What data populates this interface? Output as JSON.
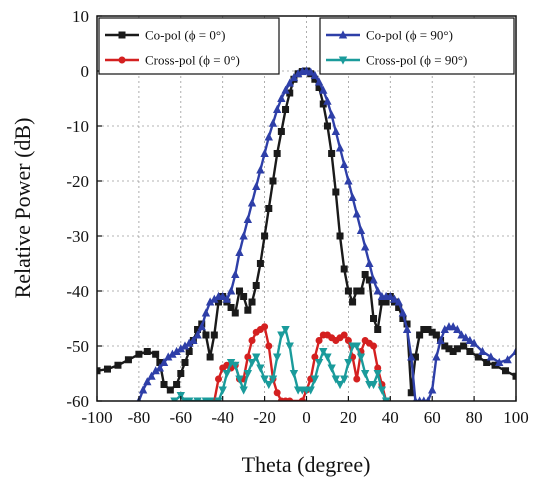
{
  "chart_data": {
    "type": "line",
    "xlabel": "Theta (degree)",
    "ylabel": "Relative Power (dB)",
    "xlim": [
      -100,
      100
    ],
    "ylim": [
      -60,
      10
    ],
    "xticks": [
      -100,
      -80,
      -60,
      -40,
      -20,
      0,
      20,
      40,
      60,
      80,
      100
    ],
    "yticks": [
      10,
      0,
      -10,
      -20,
      -30,
      -40,
      -50,
      -60
    ],
    "grid": true,
    "legend_placement": "top",
    "series": [
      {
        "name": "Co-pol (ϕ = 0°)",
        "color": "#1a1a1a",
        "marker": "square",
        "x": [
          -100,
          -95,
          -90,
          -85,
          -80,
          -76,
          -72,
          -70,
          -68,
          -65,
          -62,
          -60,
          -58,
          -56,
          -54,
          -52,
          -50,
          -48,
          -46,
          -44,
          -42,
          -40,
          -38,
          -36,
          -34,
          -32,
          -30,
          -28,
          -26,
          -24,
          -22,
          -20,
          -18,
          -16,
          -14,
          -12,
          -10,
          -8,
          -6,
          -4,
          -2,
          0,
          2,
          4,
          6,
          8,
          10,
          12,
          14,
          16,
          18,
          20,
          22,
          24,
          26,
          28,
          30,
          32,
          34,
          36,
          38,
          40,
          42,
          44,
          46,
          48,
          50,
          52,
          54,
          56,
          58,
          60,
          62,
          64,
          66,
          68,
          70,
          72,
          75,
          78,
          82,
          86,
          90,
          95,
          100
        ],
        "y": [
          -54.5,
          -54.2,
          -53.5,
          -52.5,
          -51.5,
          -51,
          -51.5,
          -53,
          -57,
          -58,
          -57,
          -55,
          -53,
          -51,
          -49,
          -47,
          -46,
          -48,
          -52,
          -48,
          -42,
          -41,
          -42,
          -43,
          -44,
          -40,
          -41,
          -43.5,
          -42,
          -39,
          -35,
          -30,
          -25,
          -20,
          -15,
          -11,
          -7,
          -4,
          -1.5,
          -0.5,
          -0.1,
          0,
          -0.5,
          -1.5,
          -3,
          -6,
          -10,
          -15,
          -22,
          -30,
          -36,
          -40,
          -42,
          -40,
          -40,
          -37,
          -38,
          -45,
          -47,
          -42,
          -42,
          -41,
          -42,
          -43,
          -45,
          -46,
          -58.5,
          -52,
          -48,
          -47,
          -47,
          -47.5,
          -48,
          -49,
          -50,
          -50.5,
          -51,
          -50.5,
          -50,
          -51,
          -52,
          -53,
          -53.5,
          -54.5,
          -55.5
        ]
      },
      {
        "name": "Cross-pol (ϕ = 0°)",
        "color": "#d42020",
        "marker": "circle",
        "x": [
          -44,
          -42,
          -40,
          -38,
          -36,
          -34,
          -32,
          -30,
          -28,
          -26,
          -24,
          -22,
          -20,
          -18,
          -16,
          -14,
          -12,
          -10,
          -8,
          -2,
          0,
          2,
          4,
          6,
          8,
          10,
          12,
          14,
          16,
          18,
          20,
          22,
          24,
          26,
          28,
          30,
          32,
          34,
          36,
          38
        ],
        "y": [
          -60,
          -56,
          -54,
          -53.5,
          -54,
          -53.5,
          -56,
          -56,
          -52,
          -49,
          -47.5,
          -47,
          -46.5,
          -50,
          -56,
          -58.5,
          -60,
          -60,
          -60,
          -60,
          -58,
          -56,
          -52,
          -49,
          -48,
          -48,
          -48.5,
          -49,
          -48.5,
          -48,
          -49,
          -52,
          -56,
          -51,
          -49,
          -49.5,
          -50,
          -54,
          -57,
          -60
        ]
      },
      {
        "name": "Co-pol (ϕ = 90°)",
        "color": "#2e3fa8",
        "marker": "triangle-up",
        "x": [
          -80,
          -78,
          -76,
          -74,
          -72,
          -70,
          -68,
          -66,
          -64,
          -62,
          -60,
          -58,
          -56,
          -54,
          -52,
          -50,
          -48,
          -46,
          -44,
          -42,
          -40,
          -38,
          -36,
          -34,
          -32,
          -30,
          -28,
          -26,
          -24,
          -22,
          -20,
          -18,
          -16,
          -14,
          -12,
          -10,
          -8,
          -6,
          -4,
          -2,
          0,
          2,
          4,
          6,
          8,
          10,
          12,
          14,
          16,
          18,
          20,
          22,
          24,
          26,
          28,
          30,
          32,
          34,
          36,
          38,
          40,
          42,
          44,
          46,
          48,
          50,
          52,
          54,
          56,
          58,
          60,
          62,
          64,
          66,
          68,
          70,
          72,
          74,
          76,
          78,
          80,
          84,
          88,
          92,
          96,
          100
        ],
        "y": [
          -60,
          -58,
          -56.5,
          -55.5,
          -54.5,
          -54,
          -53,
          -52,
          -51.5,
          -51,
          -50.5,
          -50,
          -49.5,
          -49,
          -48,
          -46.5,
          -44,
          -42,
          -41.5,
          -41,
          -41,
          -41.5,
          -40,
          -37,
          -33,
          -30,
          -27,
          -24,
          -21,
          -18,
          -15,
          -12,
          -9.5,
          -7,
          -5,
          -3.5,
          -2.2,
          -1.2,
          -0.5,
          -0.1,
          0,
          -0.2,
          -0.8,
          -2,
          -3.5,
          -5.5,
          -8,
          -11,
          -14,
          -17,
          -20,
          -23,
          -26,
          -29,
          -32,
          -35,
          -38,
          -40,
          -41,
          -41,
          -41,
          -41.5,
          -42,
          -44,
          -47,
          -52,
          -60,
          -60,
          -60,
          -60,
          -58,
          -52,
          -49,
          -47,
          -46.5,
          -46.5,
          -47,
          -48,
          -48.5,
          -49,
          -49.5,
          -51,
          -52,
          -53,
          -52.5,
          -51
        ]
      },
      {
        "name": "Cross-pol (ϕ = 90°)",
        "color": "#1a9b9b",
        "marker": "triangle-down",
        "x": [
          -63,
          -60,
          -58,
          -56,
          -52,
          -48,
          -46,
          -42,
          -40,
          -38,
          -36,
          -34,
          -32,
          -30,
          -28,
          -26,
          -24,
          -22,
          -20,
          -18,
          -16,
          -14,
          -12,
          -10,
          -8,
          -6,
          -4,
          -2,
          0,
          2,
          4,
          6,
          8,
          10,
          12,
          14,
          16,
          18,
          20,
          22,
          24,
          26,
          28,
          30,
          32,
          34,
          36,
          38
        ],
        "y": [
          -60,
          -59,
          -60,
          -60,
          -60,
          -60,
          -60,
          -60,
          -58,
          -55,
          -53,
          -53.5,
          -56,
          -58,
          -55,
          -53,
          -52,
          -54,
          -56,
          -57,
          -56,
          -52,
          -48,
          -47,
          -50,
          -55,
          -58,
          -58,
          -58,
          -58,
          -56,
          -53,
          -51,
          -52,
          -54,
          -56,
          -57,
          -56,
          -53,
          -50,
          -50,
          -52,
          -55,
          -57,
          -57,
          -55,
          -58,
          -60
        ]
      }
    ]
  }
}
